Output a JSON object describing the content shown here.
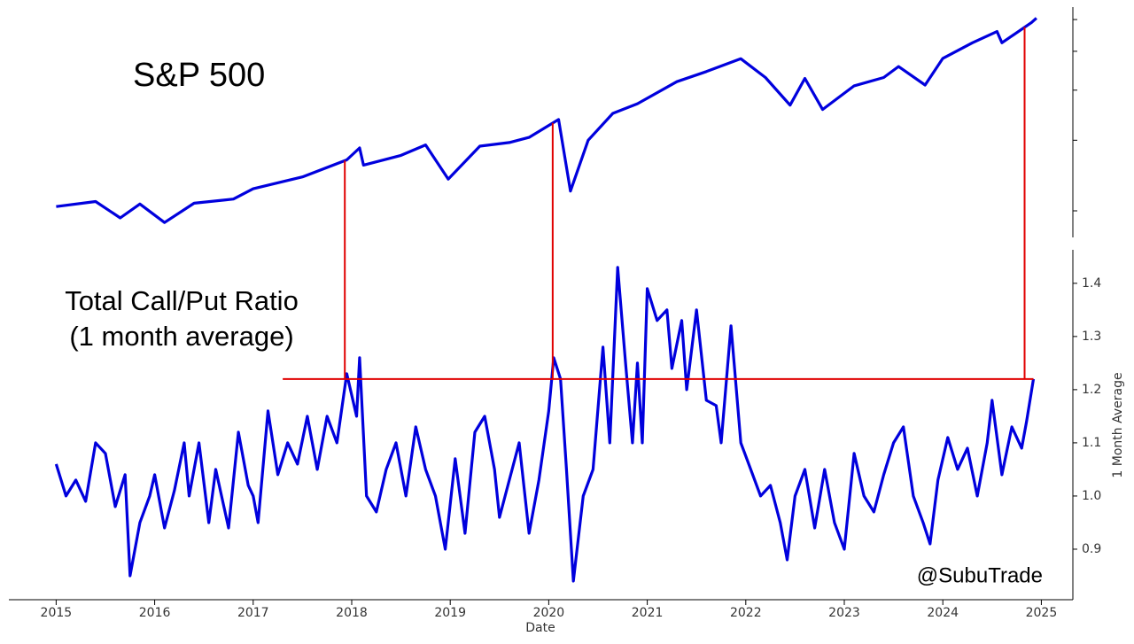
{
  "chart_data": [
    {
      "type": "line",
      "title": "S&P 500",
      "yscale": "log",
      "ylim": [
        1717,
        6445
      ],
      "yticks": [
        2000,
        3000,
        4000,
        5000,
        6000
      ],
      "tick_labels": false,
      "series": [
        {
          "name": "S&P 500",
          "color": "#0000dd",
          "x": [
            2015.0,
            2015.4,
            2015.65,
            2015.85,
            2016.1,
            2016.4,
            2016.8,
            2017.0,
            2017.5,
            2017.95,
            2018.08,
            2018.12,
            2018.5,
            2018.75,
            2018.98,
            2019.3,
            2019.6,
            2019.8,
            2020.1,
            2020.22,
            2020.4,
            2020.65,
            2020.9,
            2021.3,
            2021.6,
            2021.95,
            2022.2,
            2022.45,
            2022.6,
            2022.78,
            2023.1,
            2023.4,
            2023.55,
            2023.82,
            2024.0,
            2024.3,
            2024.55,
            2024.6,
            2024.9,
            2024.95
          ],
          "values": [
            2050,
            2110,
            1920,
            2080,
            1870,
            2090,
            2140,
            2270,
            2430,
            2680,
            2870,
            2600,
            2750,
            2920,
            2400,
            2900,
            2960,
            3050,
            3380,
            2240,
            3000,
            3500,
            3700,
            4200,
            4450,
            4790,
            4300,
            3670,
            4280,
            3580,
            4100,
            4300,
            4580,
            4120,
            4800,
            5250,
            5600,
            5250,
            5900,
            6050
          ]
        }
      ]
    },
    {
      "type": "line",
      "xlabel": "Date",
      "ylabel": "1 Month Average",
      "annotations": [
        "Total Call/Put Ratio",
        "(1 month average)",
        "@SubuTrade"
      ],
      "xlim": [
        2014.52,
        2025.32
      ],
      "xticks": [
        2015,
        2016,
        2017,
        2018,
        2019,
        2020,
        2021,
        2022,
        2023,
        2024,
        2025
      ],
      "ylim": [
        0.805,
        1.463
      ],
      "yticks": [
        0.9,
        {
          "value": 1,
          "label": "1.0"
        },
        1.1,
        1.2,
        1.3,
        1.4
      ],
      "reference_lines": {
        "color": "#e00000",
        "y": 1.22,
        "xlim": [
          2017.3,
          2024.92
        ],
        "marker_x": [
          2017.93,
          2020.04,
          2024.83
        ]
      },
      "series": [
        {
          "name": "Call/Put Ratio",
          "color": "#0000dd",
          "x": [
            2015.0,
            2015.1,
            2015.2,
            2015.3,
            2015.4,
            2015.5,
            2015.6,
            2015.7,
            2015.75,
            2015.85,
            2015.95,
            2016.0,
            2016.1,
            2016.2,
            2016.3,
            2016.35,
            2016.45,
            2016.55,
            2016.62,
            2016.75,
            2016.85,
            2016.95,
            2017.0,
            2017.05,
            2017.15,
            2017.25,
            2017.35,
            2017.45,
            2017.55,
            2017.65,
            2017.75,
            2017.85,
            2017.95,
            2018.05,
            2018.08,
            2018.15,
            2018.25,
            2018.35,
            2018.45,
            2018.55,
            2018.65,
            2018.75,
            2018.85,
            2018.95,
            2019.05,
            2019.15,
            2019.25,
            2019.35,
            2019.45,
            2019.5,
            2019.6,
            2019.7,
            2019.8,
            2019.9,
            2020.0,
            2020.05,
            2020.12,
            2020.18,
            2020.25,
            2020.35,
            2020.45,
            2020.55,
            2020.62,
            2020.7,
            2020.78,
            2020.85,
            2020.9,
            2020.95,
            2021.0,
            2021.1,
            2021.2,
            2021.25,
            2021.35,
            2021.4,
            2021.5,
            2021.6,
            2021.7,
            2021.75,
            2021.85,
            2021.95,
            2022.05,
            2022.15,
            2022.25,
            2022.35,
            2022.42,
            2022.5,
            2022.6,
            2022.7,
            2022.8,
            2022.9,
            2023.0,
            2023.1,
            2023.2,
            2023.3,
            2023.4,
            2023.5,
            2023.6,
            2023.7,
            2023.8,
            2023.87,
            2023.95,
            2024.05,
            2024.15,
            2024.25,
            2024.35,
            2024.45,
            2024.5,
            2024.6,
            2024.7,
            2024.8,
            2024.85,
            2024.92
          ],
          "values": [
            1.06,
            1.0,
            1.03,
            0.99,
            1.1,
            1.08,
            0.98,
            1.04,
            0.85,
            0.95,
            1.0,
            1.04,
            0.94,
            1.01,
            1.1,
            1.0,
            1.1,
            0.95,
            1.05,
            0.94,
            1.12,
            1.02,
            1.0,
            0.95,
            1.16,
            1.04,
            1.1,
            1.06,
            1.15,
            1.05,
            1.15,
            1.1,
            1.23,
            1.15,
            1.26,
            1.0,
            0.97,
            1.05,
            1.1,
            1.0,
            1.13,
            1.05,
            1.0,
            0.9,
            1.07,
            0.93,
            1.12,
            1.15,
            1.05,
            0.96,
            1.03,
            1.1,
            0.93,
            1.03,
            1.16,
            1.26,
            1.22,
            1.05,
            0.84,
            1.0,
            1.05,
            1.28,
            1.1,
            1.43,
            1.25,
            1.1,
            1.25,
            1.1,
            1.39,
            1.33,
            1.35,
            1.24,
            1.33,
            1.2,
            1.35,
            1.18,
            1.17,
            1.1,
            1.32,
            1.1,
            1.05,
            1.0,
            1.02,
            0.95,
            0.88,
            1.0,
            1.05,
            0.94,
            1.05,
            0.95,
            0.9,
            1.08,
            1.0,
            0.97,
            1.04,
            1.1,
            1.13,
            1.0,
            0.95,
            0.91,
            1.03,
            1.11,
            1.05,
            1.09,
            1.0,
            1.1,
            1.18,
            1.04,
            1.13,
            1.09,
            1.14,
            1.22
          ]
        }
      ]
    }
  ]
}
